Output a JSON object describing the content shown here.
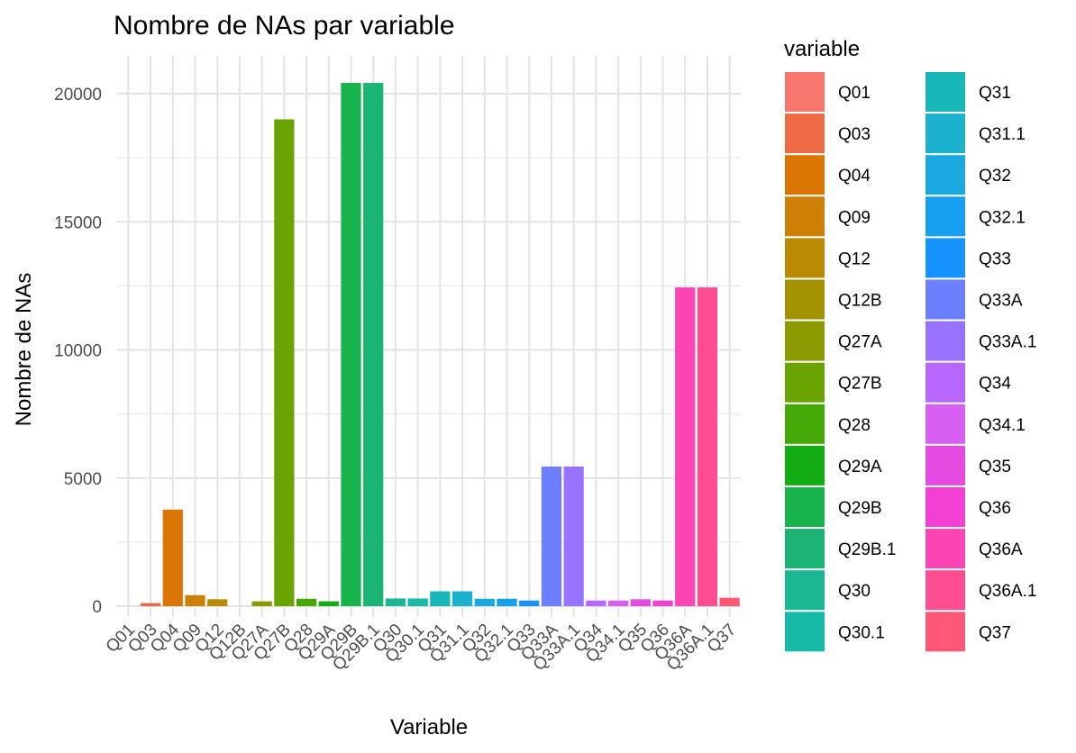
{
  "chart_data": {
    "type": "bar",
    "title": "Nombre de NAs par variable",
    "xlabel": "Variable",
    "ylabel": "Nombre de NAs",
    "ylim": [
      0,
      21000
    ],
    "yticks": [
      "0",
      "5000",
      "10000",
      "15000",
      "20000"
    ],
    "grid": true,
    "legend": {
      "title": "variable",
      "placement": "right",
      "columns": 2
    },
    "categories": [
      "Q01",
      "Q03",
      "Q04",
      "Q09",
      "Q12",
      "Q12B",
      "Q27A",
      "Q27B",
      "Q28",
      "Q29A",
      "Q29B",
      "Q29B.1",
      "Q30",
      "Q30.1",
      "Q31",
      "Q31.1",
      "Q32",
      "Q32.1",
      "Q33",
      "Q33A",
      "Q33A.1",
      "Q34",
      "Q34.1",
      "Q35",
      "Q36",
      "Q36A",
      "Q36A.1",
      "Q37"
    ],
    "values": [
      0,
      120,
      3770,
      430,
      270,
      0,
      190,
      19000,
      290,
      190,
      20420,
      20420,
      300,
      300,
      580,
      580,
      290,
      290,
      220,
      5450,
      5450,
      220,
      220,
      270,
      220,
      12440,
      12440,
      330
    ],
    "colors": [
      "#F8766D",
      "#ED6A44",
      "#DB7504",
      "#CD7F06",
      "#B98A02",
      "#A39303",
      "#8A9A00",
      "#6BA303",
      "#44A806",
      "#13AD13",
      "#19B34D",
      "#1BB474",
      "#1AB792",
      "#17BAA7",
      "#19B8B8",
      "#1BB1CF",
      "#19A8E0",
      "#18A0F0",
      "#1693FF",
      "#6C80FF",
      "#9873FF",
      "#B767FF",
      "#D75FF2",
      "#E64BE1",
      "#F241D2",
      "#FB45B5",
      "#FF4D91",
      "#FF5877"
    ]
  }
}
